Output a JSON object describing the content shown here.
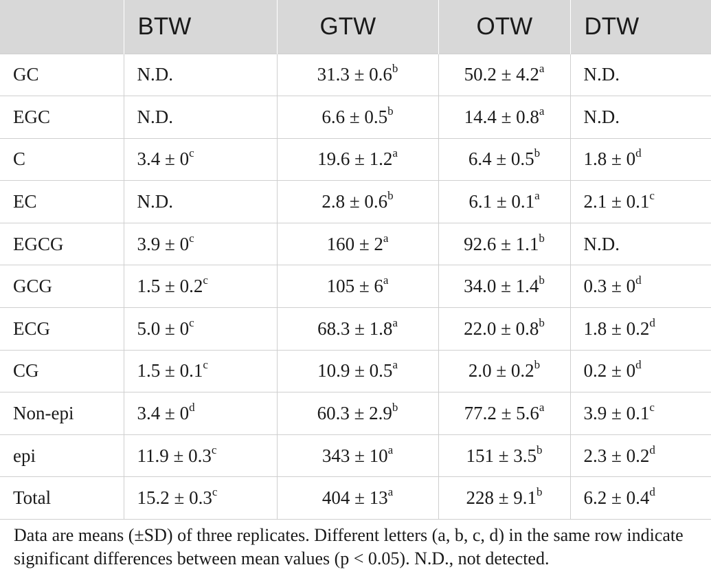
{
  "table": {
    "headers": [
      "",
      "BTW",
      "GTW",
      "OTW",
      "DTW"
    ],
    "rows": [
      {
        "label": "GC",
        "cells": [
          {
            "v": "N.D.",
            "s": ""
          },
          {
            "v": "31.3 ± 0.6",
            "s": "b"
          },
          {
            "v": "50.2 ± 4.2",
            "s": "a"
          },
          {
            "v": "N.D.",
            "s": ""
          }
        ]
      },
      {
        "label": "EGC",
        "cells": [
          {
            "v": "N.D.",
            "s": ""
          },
          {
            "v": "6.6 ± 0.5",
            "s": "b"
          },
          {
            "v": "14.4 ± 0.8",
            "s": "a"
          },
          {
            "v": "N.D.",
            "s": ""
          }
        ]
      },
      {
        "label": "C",
        "cells": [
          {
            "v": "3.4 ± 0",
            "s": "c"
          },
          {
            "v": "19.6 ± 1.2",
            "s": "a"
          },
          {
            "v": "6.4 ± 0.5",
            "s": "b"
          },
          {
            "v": "1.8 ± 0",
            "s": "d"
          }
        ]
      },
      {
        "label": "EC",
        "cells": [
          {
            "v": "N.D.",
            "s": ""
          },
          {
            "v": "2.8 ± 0.6",
            "s": "b"
          },
          {
            "v": "6.1 ± 0.1",
            "s": "a"
          },
          {
            "v": "2.1 ± 0.1",
            "s": "c"
          }
        ]
      },
      {
        "label": "EGCG",
        "cells": [
          {
            "v": "3.9 ± 0",
            "s": "c"
          },
          {
            "v": "160 ± 2",
            "s": "a"
          },
          {
            "v": "92.6 ± 1.1",
            "s": "b"
          },
          {
            "v": "N.D.",
            "s": ""
          }
        ]
      },
      {
        "label": "GCG",
        "cells": [
          {
            "v": "1.5 ± 0.2",
            "s": "c"
          },
          {
            "v": "105 ± 6",
            "s": "a"
          },
          {
            "v": "34.0 ± 1.4",
            "s": "b"
          },
          {
            "v": "0.3 ± 0",
            "s": "d"
          }
        ]
      },
      {
        "label": "ECG",
        "cells": [
          {
            "v": "5.0 ± 0",
            "s": "c"
          },
          {
            "v": "68.3 ± 1.8",
            "s": "a"
          },
          {
            "v": "22.0 ± 0.8",
            "s": "b"
          },
          {
            "v": "1.8 ± 0.2",
            "s": "d"
          }
        ]
      },
      {
        "label": "CG",
        "cells": [
          {
            "v": "1.5 ± 0.1",
            "s": "c"
          },
          {
            "v": "10.9 ± 0.5",
            "s": "a"
          },
          {
            "v": "2.0 ± 0.2",
            "s": "b"
          },
          {
            "v": "0.2 ± 0",
            "s": "d"
          }
        ]
      },
      {
        "label": "Non-epi",
        "cells": [
          {
            "v": "3.4 ± 0",
            "s": "d"
          },
          {
            "v": "60.3 ± 2.9",
            "s": "b"
          },
          {
            "v": "77.2 ± 5.6",
            "s": "a"
          },
          {
            "v": "3.9 ± 0.1",
            "s": "c"
          }
        ]
      },
      {
        "label": "epi",
        "cells": [
          {
            "v": "11.9 ± 0.3",
            "s": "c"
          },
          {
            "v": "343 ± 10",
            "s": "a"
          },
          {
            "v": "151 ± 3.5",
            "s": "b"
          },
          {
            "v": "2.3 ± 0.2",
            "s": "d"
          }
        ]
      },
      {
        "label": "Total",
        "cells": [
          {
            "v": "15.2 ± 0.3",
            "s": "c"
          },
          {
            "v": "404 ± 13",
            "s": "a"
          },
          {
            "v": "228 ± 9.1",
            "s": "b"
          },
          {
            "v": "6.2 ± 0.4",
            "s": "d"
          }
        ]
      }
    ]
  },
  "footnote": {
    "line1": "Data are means (±SD) of three replicates. Different letters (a, b, c, d) in the same row indicate",
    "line2": "significant differences between mean values (p < 0.05). N.D., not detected."
  },
  "colors": {
    "header_bg": "#d8d8d8",
    "grid": "#cfcfcf",
    "text": "#1a1a1a"
  }
}
